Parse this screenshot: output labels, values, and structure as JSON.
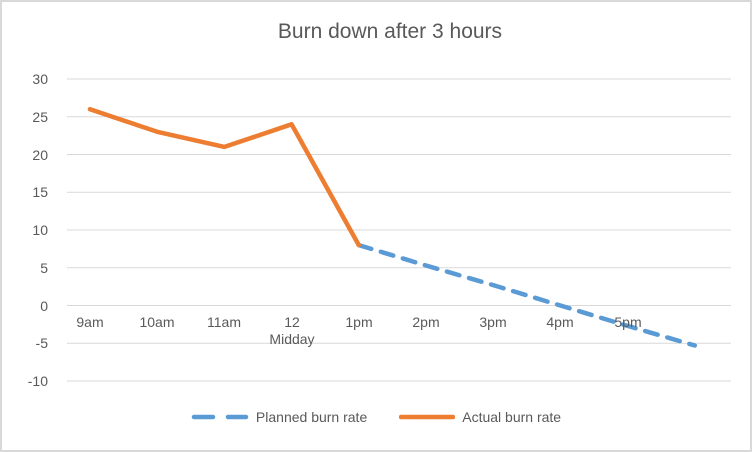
{
  "window": {
    "background": "#FFFFFF",
    "border_color": "#D9D9D9"
  },
  "chart_data": {
    "type": "line",
    "title": "Burn down after 3 hours",
    "categories": [
      "9am",
      "10am",
      "11am",
      "12\nMidday",
      "1pm",
      "2pm",
      "3pm",
      "4pm",
      "5pm",
      ""
    ],
    "series": [
      {
        "name": "Planned burn rate",
        "color": "#5B9BD5",
        "line_style": "dashed",
        "values": [
          null,
          null,
          null,
          null,
          8,
          5.3,
          2.7,
          0,
          -2.7,
          -5.3
        ]
      },
      {
        "name": "Actual burn rate",
        "color": "#ED7D31",
        "line_style": "solid",
        "values": [
          26,
          23,
          21,
          24,
          8,
          null,
          null,
          null,
          null,
          null
        ]
      }
    ],
    "y_axis": {
      "min": -10,
      "max": 30,
      "tick_step": 5,
      "ticks": [
        30,
        25,
        20,
        15,
        10,
        5,
        0,
        -5,
        -10
      ]
    },
    "x_axis": {
      "label_row": "between 0 and -5 gridlines"
    },
    "grid": "horizontal",
    "gridline_color": "#D9D9D9",
    "text_color": "#595959",
    "legend_position": "bottom"
  }
}
